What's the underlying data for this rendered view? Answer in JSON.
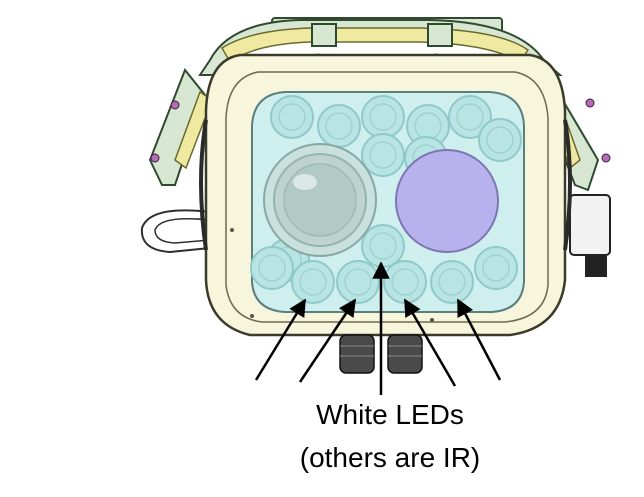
{
  "caption": {
    "line1": "White LEDs",
    "line2": "(others are IR)"
  },
  "colors": {
    "housing_fill": "#f7f5dc",
    "housing_stroke": "#3b3b2a",
    "window_fill": "#cfeeee",
    "led_fill": "#b9e4e4",
    "led_ring": "#8fc9c9",
    "lens_fill": "#bed3cf",
    "sensor_fill": "#b7b2ee",
    "bracket_fill": "#cfe6cc",
    "bracket_stroke": "#2f4a2f",
    "arrow": "#000000",
    "gland_fill": "#4a4a4a"
  }
}
